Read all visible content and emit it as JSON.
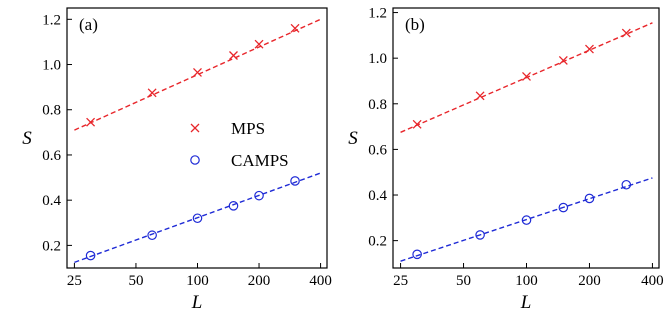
{
  "chart_data": [
    {
      "type": "scatter",
      "panel_label": "(a)",
      "xlabel": "L",
      "ylabel": "S",
      "xscale": "log",
      "xlim": [
        23,
        430
      ],
      "ylim": [
        0.1,
        1.25
      ],
      "xticks": [
        25,
        50,
        100,
        200,
        400
      ],
      "yticks": [
        0.2,
        0.4,
        0.6,
        0.8,
        1.0,
        1.2
      ],
      "ytick_labels": [
        "0.2",
        "0.4",
        "0.6",
        "0.8",
        "1.0",
        "1.2"
      ],
      "legend": "center-right",
      "series": [
        {
          "name": "MPS",
          "marker": "x",
          "color": "#e8262b",
          "x": [
            30,
            60,
            100,
            150,
            200,
            300
          ],
          "y": [
            0.745,
            0.875,
            0.965,
            1.04,
            1.09,
            1.16
          ],
          "fit": {
            "x": [
              25,
              400
            ],
            "y": [
              0.71,
              1.2
            ]
          }
        },
        {
          "name": "CAMPS",
          "marker": "o",
          "color": "#1f2bd6",
          "x": [
            30,
            60,
            100,
            150,
            200,
            300
          ],
          "y": [
            0.155,
            0.245,
            0.32,
            0.375,
            0.42,
            0.485
          ],
          "fit": {
            "x": [
              25,
              400
            ],
            "y": [
              0.125,
              0.52
            ]
          }
        }
      ]
    },
    {
      "type": "scatter",
      "panel_label": "(b)",
      "xlabel": "L",
      "ylabel": "S",
      "xscale": "log",
      "xlim": [
        23,
        430
      ],
      "ylim": [
        0.08,
        1.22
      ],
      "xticks": [
        25,
        50,
        100,
        200,
        400
      ],
      "yticks": [
        0.2,
        0.4,
        0.6,
        0.8,
        1.0,
        1.2
      ],
      "ytick_labels": [
        "0.2",
        "0.4",
        "0.6",
        "0.8",
        "1.0",
        "1.2"
      ],
      "series": [
        {
          "name": "MPS",
          "marker": "x",
          "color": "#e8262b",
          "x": [
            30,
            60,
            100,
            150,
            200,
            300
          ],
          "y": [
            0.71,
            0.835,
            0.92,
            0.99,
            1.04,
            1.11
          ],
          "fit": {
            "x": [
              25,
              400
            ],
            "y": [
              0.675,
              1.155
            ]
          }
        },
        {
          "name": "CAMPS",
          "marker": "o",
          "color": "#1f2bd6",
          "x": [
            30,
            60,
            100,
            150,
            200,
            300
          ],
          "y": [
            0.14,
            0.225,
            0.29,
            0.345,
            0.385,
            0.445
          ],
          "fit": {
            "x": [
              25,
              400
            ],
            "y": [
              0.11,
              0.475
            ]
          }
        }
      ]
    }
  ]
}
